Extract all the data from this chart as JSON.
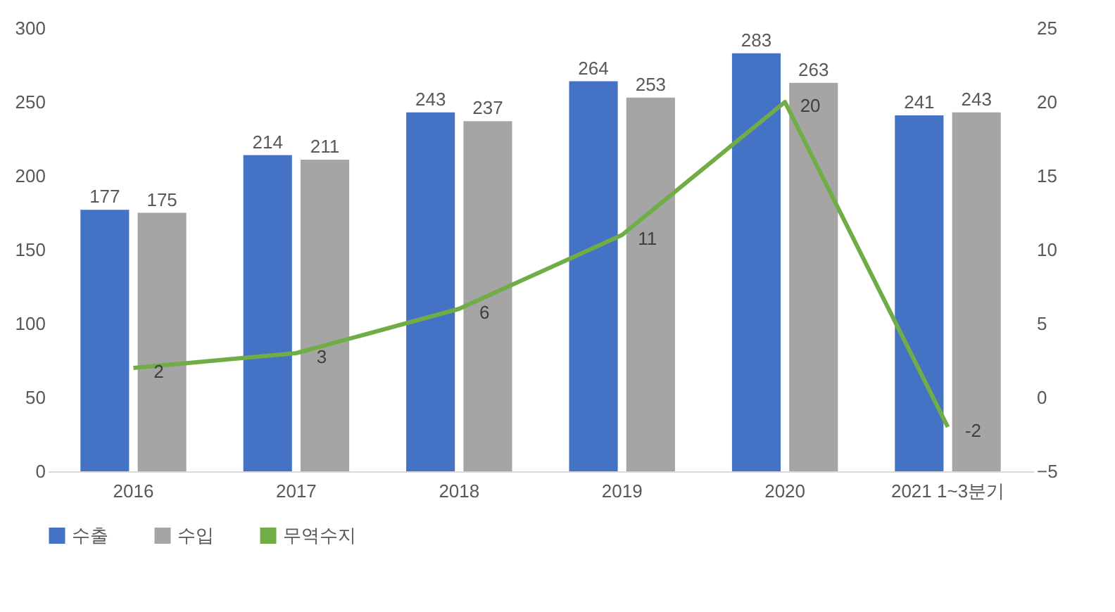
{
  "chart_data": {
    "type": "bar",
    "categories": [
      "2016",
      "2017",
      "2018",
      "2019",
      "2020",
      "2021 1~3분기"
    ],
    "series": [
      {
        "name": "수출",
        "color": "#4472c4",
        "values": [
          177,
          214,
          243,
          264,
          283,
          241
        ]
      },
      {
        "name": "수입",
        "color": "#a5a5a5",
        "values": [
          175,
          211,
          237,
          253,
          263,
          243
        ]
      },
      {
        "name": "무역수지",
        "color": "#70ad47",
        "type": "line",
        "axis": "y2",
        "values": [
          2,
          3,
          6,
          11,
          20,
          -2
        ]
      }
    ],
    "ylim": [
      0,
      300
    ],
    "yticks": [
      0,
      50,
      100,
      150,
      200,
      250,
      300
    ],
    "y2lim": [
      -5,
      25
    ],
    "y2ticks": [
      -5,
      0,
      5,
      10,
      15,
      20,
      25
    ],
    "data_labels": true,
    "grid": false,
    "legend": "bottom",
    "marker": "none",
    "line_style": "solid"
  }
}
